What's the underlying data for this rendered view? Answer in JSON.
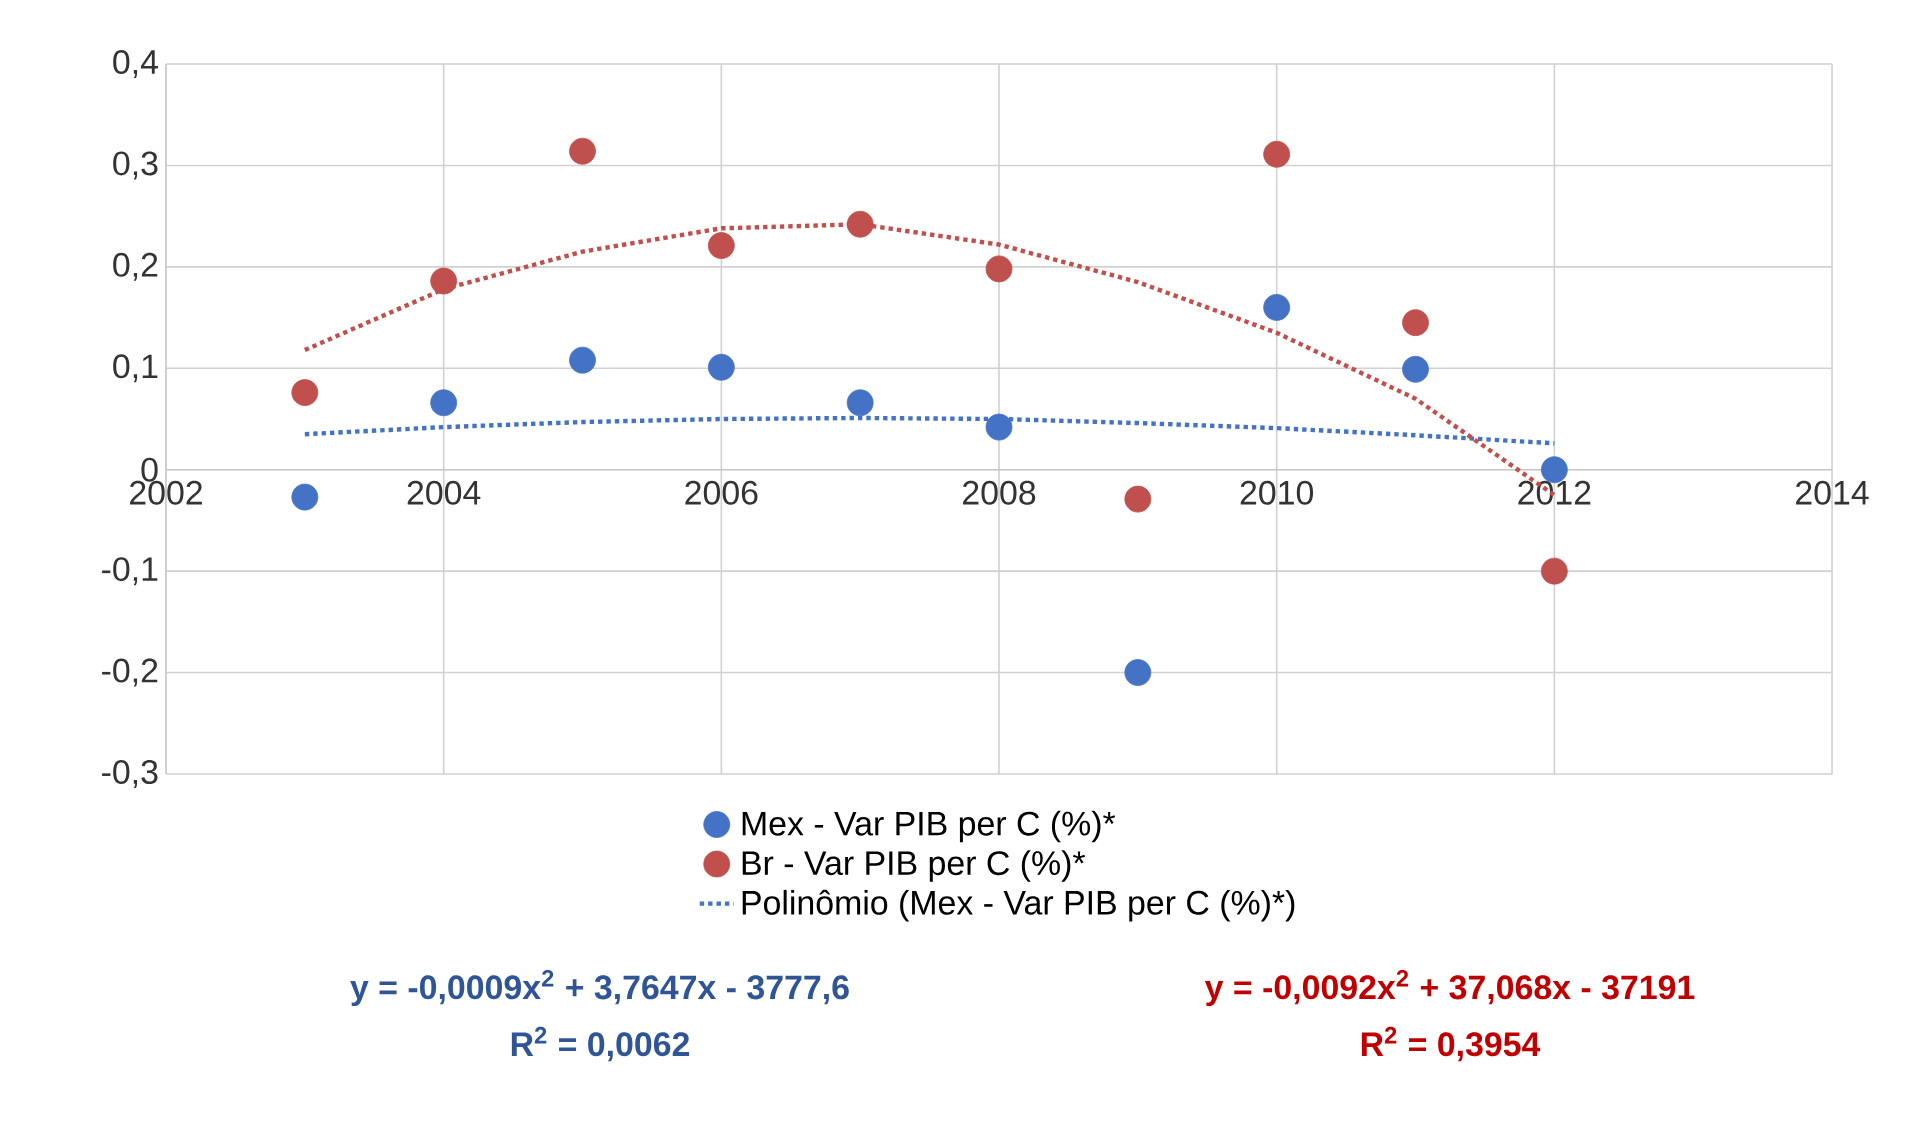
{
  "chart_data": {
    "type": "scatter",
    "xlim": [
      2002,
      2014
    ],
    "xticks": [
      2002,
      2004,
      2006,
      2008,
      2010,
      2012,
      2014
    ],
    "ylim": [
      -0.3,
      0.4
    ],
    "yticks": [
      {
        "value": -0.3,
        "label": "-0,3"
      },
      {
        "value": -0.2,
        "label": "-0,2"
      },
      {
        "value": -0.1,
        "label": "-0,1"
      },
      {
        "value": 0,
        "label": "0"
      },
      {
        "value": 0.1,
        "label": "0,1"
      },
      {
        "value": 0.2,
        "label": "0,2"
      },
      {
        "value": 0.3,
        "label": "0,3"
      },
      {
        "value": 0.4,
        "label": "0,4"
      }
    ],
    "grid": true,
    "legend": "bottom",
    "series": [
      {
        "name": "Mex - Var PIB per C (%)*",
        "marker": "circle",
        "color": "#4472c4",
        "x": [
          2003,
          2004,
          2005,
          2006,
          2007,
          2008,
          2009,
          2010,
          2011,
          2012
        ],
        "values": [
          -0.027,
          0.066,
          0.108,
          0.101,
          0.066,
          0.042,
          -0.2,
          0.16,
          0.099,
          0.0
        ]
      },
      {
        "name": "Br  - Var PIB per C (%)*",
        "marker": "circle",
        "color": "#c0504d",
        "x": [
          2003,
          2004,
          2005,
          2006,
          2007,
          2008,
          2009,
          2010,
          2011,
          2012
        ],
        "values": [
          0.076,
          0.186,
          0.314,
          0.221,
          0.242,
          0.198,
          -0.029,
          0.311,
          0.145,
          -0.1
        ]
      },
      {
        "name": "Polinômio (Mex - Var PIB per C (%)*)",
        "type": "line",
        "line_style": "dotted",
        "marker": "none",
        "color": "#4472c4",
        "x": [
          2003,
          2004,
          2005,
          2006,
          2007,
          2008,
          2009,
          2010,
          2011,
          2012
        ],
        "values": [
          0.035,
          0.042,
          0.047,
          0.05,
          0.051,
          0.05,
          0.046,
          0.041,
          0.034,
          0.026
        ]
      },
      {
        "type": "line",
        "line_style": "dotted",
        "marker": "none",
        "color": "#c0504d",
        "x": [
          2003,
          2004,
          2005,
          2006,
          2007,
          2008,
          2009,
          2010,
          2011,
          2012
        ],
        "values": [
          0.118,
          0.178,
          0.215,
          0.238,
          0.242,
          0.222,
          0.185,
          0.135,
          0.07,
          -0.025
        ]
      }
    ],
    "annotations": [
      "y = -0,0009x$^{2}$ + 3,7647x - 3777,6",
      "R$^{2}$ = 0,0062",
      "y = -0,0092x$^{2}$ + 37,068x - 37191",
      "R$^{2}$ = 0,3954"
    ]
  }
}
